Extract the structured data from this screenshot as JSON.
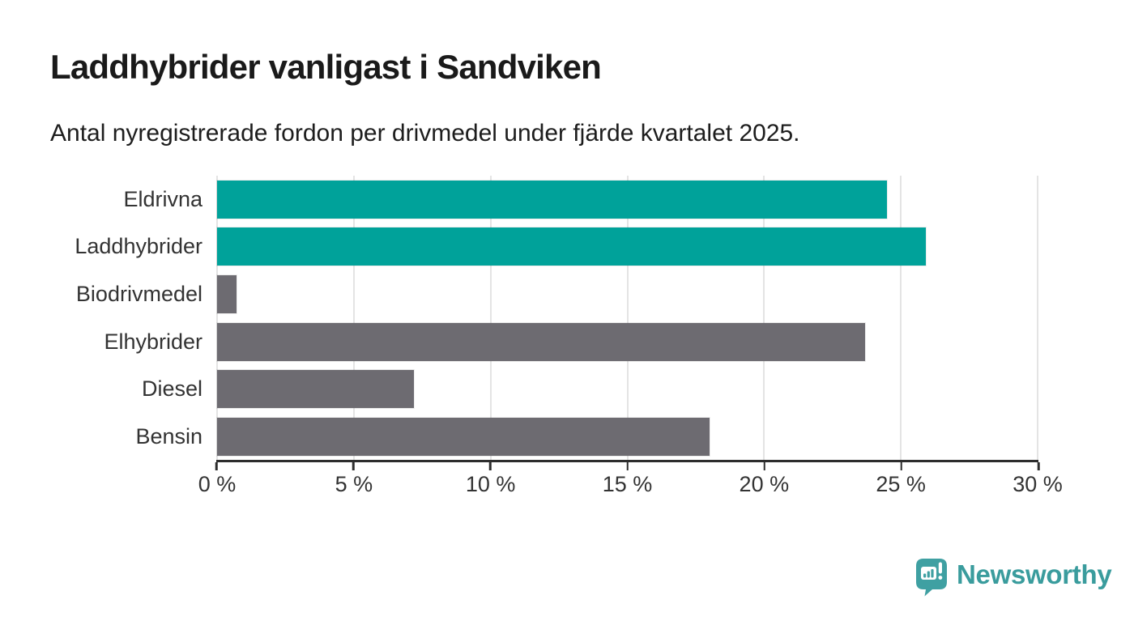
{
  "chart_data": {
    "type": "bar",
    "orientation": "horizontal",
    "title": "Laddhybrider vanligast i Sandviken",
    "subtitle": "Antal nyregistrerade fordon per drivmedel under fjärde kvartalet 2025.",
    "categories": [
      "Eldrivna",
      "Laddhybrider",
      "Biodrivmedel",
      "Elhybrider",
      "Diesel",
      "Bensin"
    ],
    "values": [
      24.5,
      25.9,
      0.7,
      23.7,
      7.2,
      18
    ],
    "highlighted": [
      true,
      true,
      false,
      false,
      false,
      false
    ],
    "xlim": [
      0,
      30
    ],
    "x_ticks": [
      0,
      5,
      10,
      15,
      20,
      25,
      30
    ],
    "x_tick_suffix": " %",
    "grid": "vertical-gridlines",
    "legend": "none",
    "colors": {
      "highlight": "#00a29a",
      "default": "#6d6b71",
      "gridline": "#e4e4e4",
      "axis": "#2d2d2d",
      "text": "#333333"
    }
  },
  "branding": {
    "wordmark": "Newsworthy",
    "icon": "newsworthy-speech-bubble-bar-chart-icon",
    "color": "#3a9c9d",
    "icon_color": "#3fa0a2"
  }
}
